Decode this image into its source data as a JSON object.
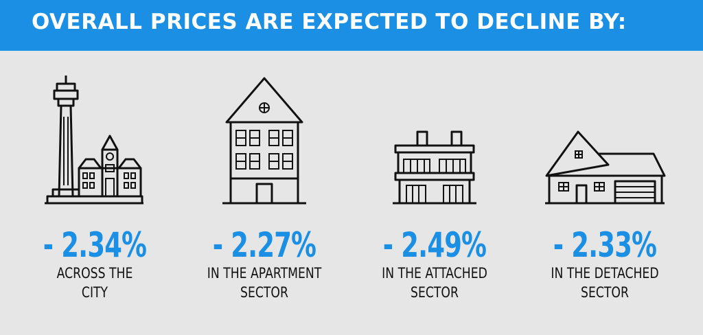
{
  "header": {
    "title": "OVERALL PRICES ARE EXPECTED TO DECLINE BY:"
  },
  "stats": [
    {
      "value": "- 2.34%",
      "line1": "ACROSS THE",
      "line2": "CITY",
      "icon": "city-skyline-icon"
    },
    {
      "value": "- 2.27%",
      "line1": "IN THE APARTMENT",
      "line2": "SECTOR",
      "icon": "apartment-building-icon"
    },
    {
      "value": "- 2.49%",
      "line1": "IN THE ATTACHED",
      "line2": "SECTOR",
      "icon": "townhouse-icon"
    },
    {
      "value": "- 2.33%",
      "line1": "IN THE DETACHED",
      "line2": "SECTOR",
      "icon": "detached-house-icon"
    }
  ],
  "colors": {
    "header_bg": "#1a8fe3",
    "value": "#1a8fe3",
    "background": "#e6e6e6"
  }
}
